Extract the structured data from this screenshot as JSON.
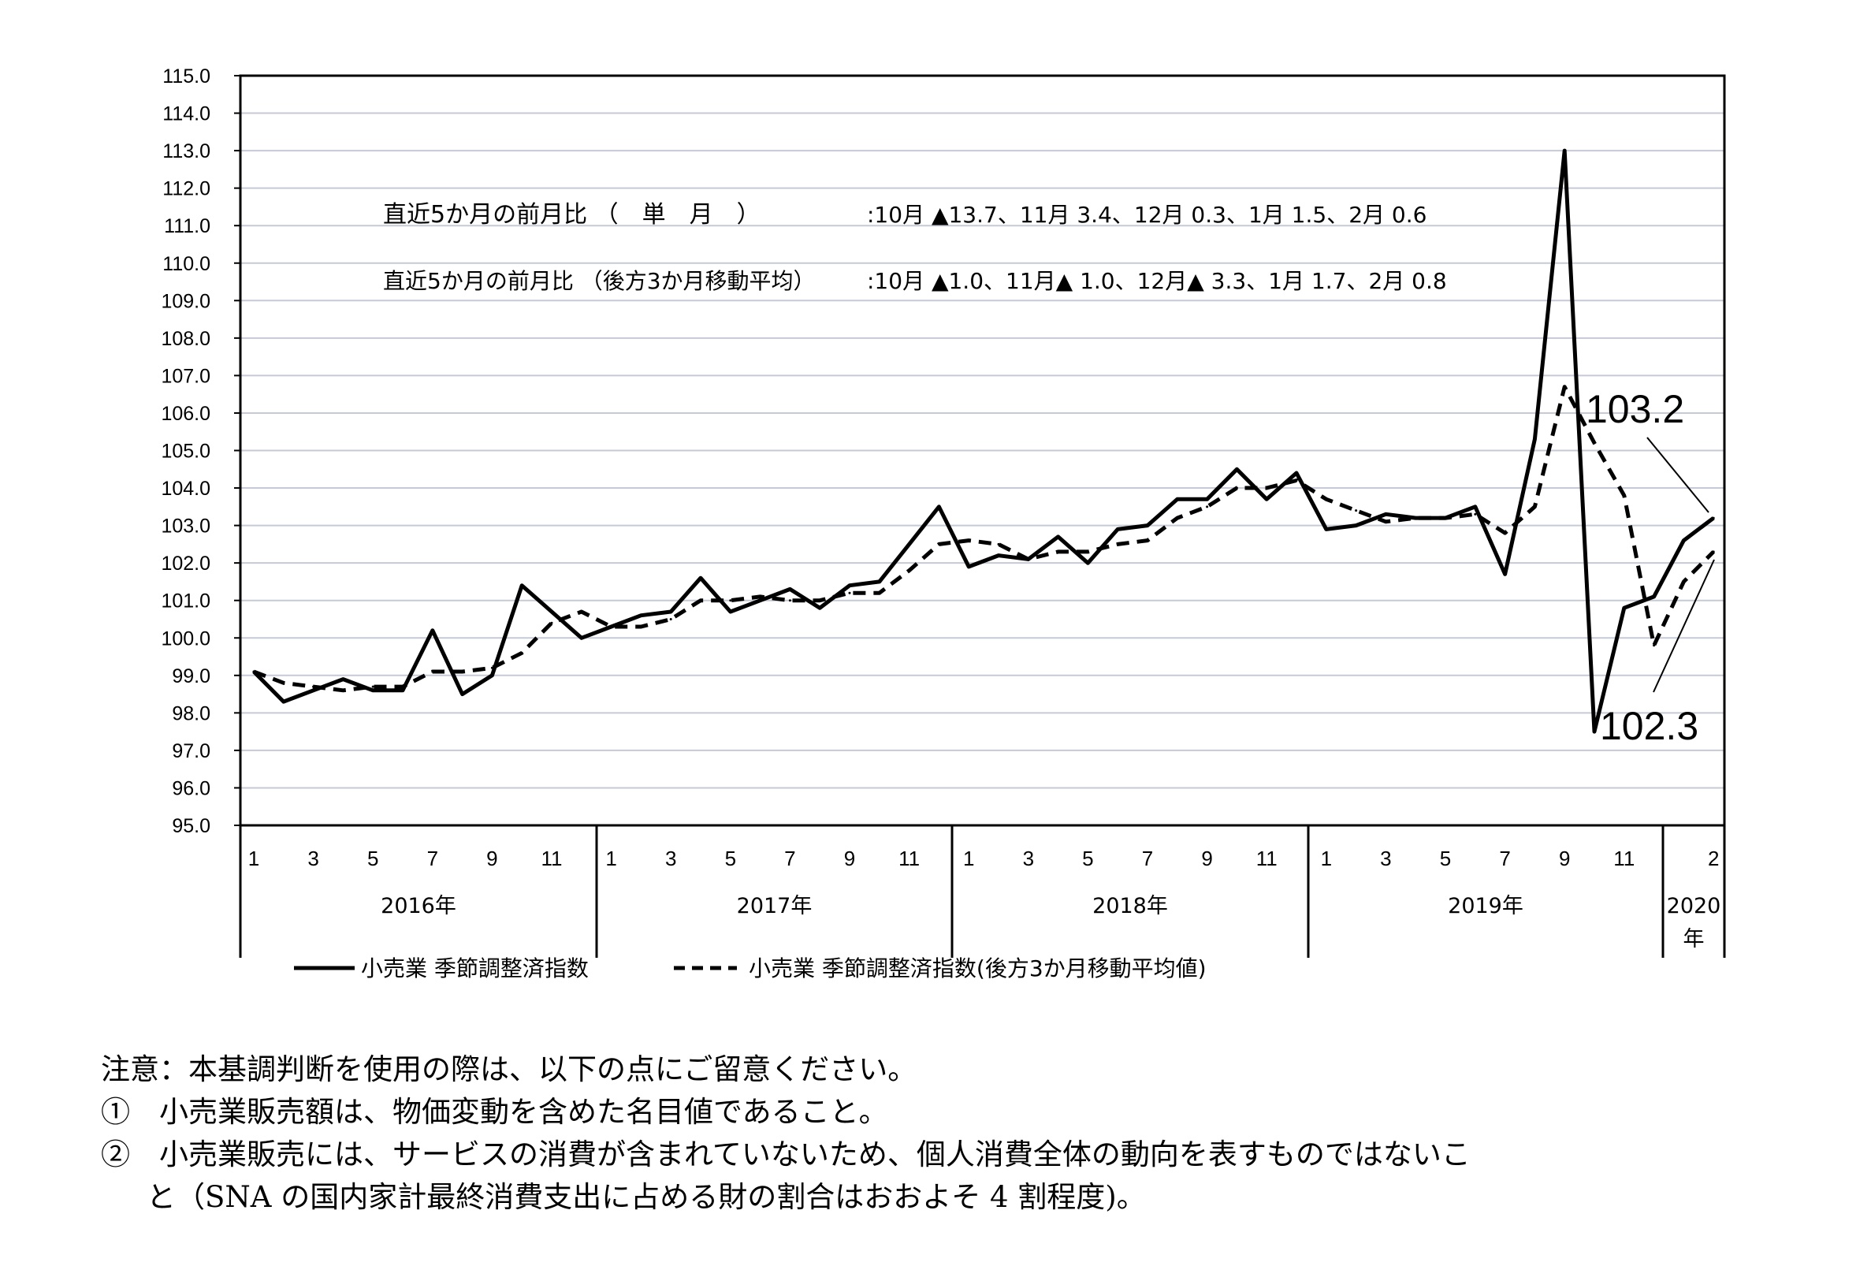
{
  "chart_data": {
    "type": "line",
    "title": "",
    "xlabel": "",
    "ylabel": "",
    "ylim": [
      95.0,
      115.0
    ],
    "y_ticks": [
      "115.0",
      "114.0",
      "113.0",
      "112.0",
      "111.0",
      "110.0",
      "109.0",
      "108.0",
      "107.0",
      "106.0",
      "105.0",
      "104.0",
      "103.0",
      "102.0",
      "101.0",
      "100.0",
      "99.0",
      "98.0",
      "97.0",
      "96.0",
      "95.0"
    ],
    "grid": true,
    "month_ticks": [
      "1",
      "3",
      "5",
      "7",
      "9",
      "11",
      "1",
      "3",
      "5",
      "7",
      "9",
      "11",
      "1",
      "3",
      "5",
      "7",
      "9",
      "11",
      "1",
      "3",
      "5",
      "7",
      "9",
      "11",
      "2"
    ],
    "years": [
      "2016年",
      "2017年",
      "2018年",
      "2019年"
    ],
    "year_2020_line1": "2020",
    "year_2020_line2": "年",
    "x": [
      "2016-01",
      "2016-02",
      "2016-03",
      "2016-04",
      "2016-05",
      "2016-06",
      "2016-07",
      "2016-08",
      "2016-09",
      "2016-10",
      "2016-11",
      "2016-12",
      "2017-01",
      "2017-02",
      "2017-03",
      "2017-04",
      "2017-05",
      "2017-06",
      "2017-07",
      "2017-08",
      "2017-09",
      "2017-10",
      "2017-11",
      "2017-12",
      "2018-01",
      "2018-02",
      "2018-03",
      "2018-04",
      "2018-05",
      "2018-06",
      "2018-07",
      "2018-08",
      "2018-09",
      "2018-10",
      "2018-11",
      "2018-12",
      "2019-01",
      "2019-02",
      "2019-03",
      "2019-04",
      "2019-05",
      "2019-06",
      "2019-07",
      "2019-08",
      "2019-09",
      "2019-10",
      "2019-11",
      "2019-12",
      "2020-01",
      "2020-02"
    ],
    "series": [
      {
        "name": "小売業 季節調整済指数",
        "style": "solid",
        "values": [
          99.1,
          98.3,
          98.6,
          98.9,
          98.6,
          98.6,
          100.2,
          98.5,
          99.0,
          101.4,
          100.7,
          100.0,
          100.3,
          100.6,
          100.7,
          101.6,
          100.7,
          101.0,
          101.3,
          100.8,
          101.4,
          101.5,
          102.5,
          103.5,
          101.9,
          102.2,
          102.1,
          102.7,
          102.0,
          102.9,
          103.0,
          103.7,
          103.7,
          104.5,
          103.7,
          104.4,
          102.9,
          103.0,
          103.3,
          103.2,
          103.2,
          103.5,
          101.7,
          105.3,
          113.0,
          97.5,
          100.8,
          101.1,
          102.6,
          103.2
        ]
      },
      {
        "name": "小売業 季節調整済指数(後方3か月移動平均値)",
        "style": "dashed",
        "values": [
          99.1,
          98.8,
          98.7,
          98.6,
          98.7,
          98.7,
          99.1,
          99.1,
          99.2,
          99.6,
          100.4,
          100.7,
          100.3,
          100.3,
          100.5,
          101.0,
          101.0,
          101.1,
          101.0,
          101.0,
          101.2,
          101.2,
          101.8,
          102.5,
          102.6,
          102.5,
          102.1,
          102.3,
          102.3,
          102.5,
          102.6,
          103.2,
          103.5,
          104.0,
          104.0,
          104.2,
          103.7,
          103.4,
          103.1,
          103.2,
          103.2,
          103.3,
          102.8,
          103.5,
          106.7,
          105.2,
          103.8,
          99.8,
          101.5,
          102.3
        ]
      }
    ],
    "end_label_solid": "103.2",
    "end_label_dashed": "102.3",
    "legend_position": "bottom"
  },
  "annotations": {
    "single_label": "直近5か月の前月比 （　単　月　）",
    "single_values": ":10月 ▲13.7、11月 3.4、12月 0.3、1月  1.5、2月  0.6",
    "ma_label": "直近5か月の前月比 （後方3か月移動平均）",
    "ma_values": ":10月  ▲1.0、11月▲ 1.0、12月▲ 3.3、1月  1.7、2月  0.8"
  },
  "legend": {
    "solid_label": "小売業 季節調整済指数",
    "dashed_label": "小売業 季節調整済指数(後方3か月移動平均値)"
  },
  "notes": {
    "heading": "注意：本基調判断を使用の際は、以下の点にご留意ください。",
    "item1": "①　小売業販売額は、物価変動を含めた名目値であること。",
    "item2_line1": "②　小売業販売には、サービスの消費が含まれていないため、個人消費全体の動向を表すものではないこ",
    "item2_line2": "と（SNA の国内家計最終消費支出に占める財の割合はおおよそ 4 割程度)。"
  }
}
